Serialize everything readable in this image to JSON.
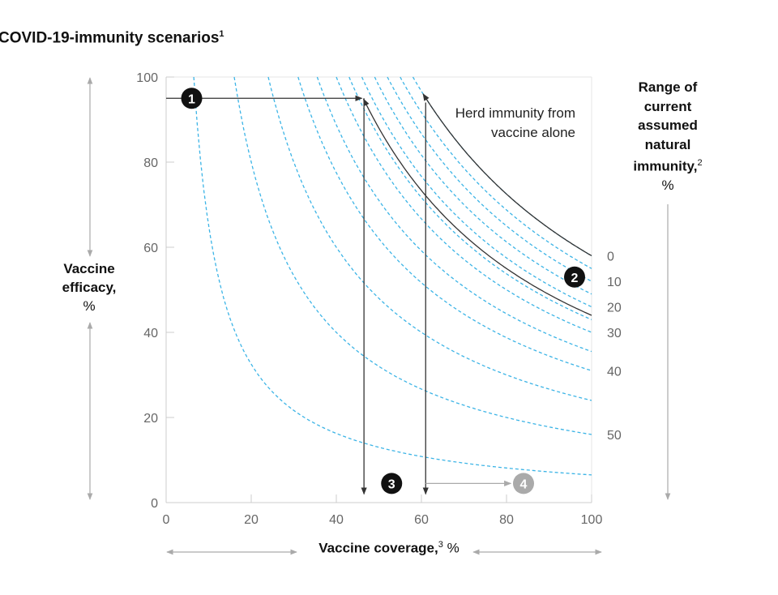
{
  "chart_data": {
    "type": "line",
    "title": "COVID-19-immunity scenarios",
    "title_footnote": "1",
    "xlabel": "Vaccine coverage,",
    "xlabel_footnote": "3",
    "xlabel_unit": "%",
    "ylabel": "Vaccine efficacy,",
    "ylabel_unit": "%",
    "right_label": "Range of current assumed natural immunity,",
    "right_label_footnote": "2",
    "right_label_unit": "%",
    "xlim": [
      0,
      100
    ],
    "ylim": [
      0,
      100
    ],
    "x_ticks": [
      "0",
      "20",
      "40",
      "60",
      "80",
      "100"
    ],
    "y_ticks": [
      "0",
      "20",
      "40",
      "60",
      "80",
      "100"
    ],
    "natural_immunity_ticks": [
      {
        "label": "0",
        "value": 0.58
      },
      {
        "label": "10",
        "value": 0.52
      },
      {
        "label": "20",
        "value": 0.46
      },
      {
        "label": "30",
        "value": 0.4
      },
      {
        "label": "40",
        "value": 0.31
      },
      {
        "label": "50",
        "value": 0.16
      }
    ],
    "series": [
      {
        "style": "dashed",
        "value": 0.58
      },
      {
        "style": "dashed",
        "value": 0.55
      },
      {
        "style": "dashed",
        "value": 0.52
      },
      {
        "style": "dashed",
        "value": 0.49
      },
      {
        "style": "dashed",
        "value": 0.46
      },
      {
        "style": "dashed",
        "value": 0.43
      },
      {
        "style": "dashed",
        "value": 0.4
      },
      {
        "style": "dashed",
        "value": 0.355
      },
      {
        "style": "dashed",
        "value": 0.31
      },
      {
        "style": "dashed",
        "value": 0.24
      },
      {
        "style": "dashed",
        "value": 0.16
      },
      {
        "style": "dashed",
        "value": 0.065
      },
      {
        "style": "solid",
        "value": 0.58
      },
      {
        "style": "solid",
        "value": 0.44
      }
    ],
    "annotation_text": "Herd immunity from vaccine alone",
    "markers": [
      {
        "label": "1",
        "x": 6,
        "y": 95,
        "color": "#111111"
      },
      {
        "label": "2",
        "x": 96,
        "y": 53,
        "color": "#111111"
      },
      {
        "label": "3",
        "x": 53,
        "y": 4.5,
        "color": "#111111"
      },
      {
        "label": "4",
        "x": 84,
        "y": 4.5,
        "color": "#aaaaaa"
      }
    ],
    "arrows": [
      {
        "from": [
          0,
          95
        ],
        "to": [
          46,
          95
        ],
        "color": "#333333"
      },
      {
        "from": [
          46.5,
          95
        ],
        "to": [
          46.5,
          2
        ],
        "color": "#333333"
      },
      {
        "from": [
          61,
          94
        ],
        "to": [
          61,
          2
        ],
        "color": "#333333"
      },
      {
        "from": [
          61,
          4.5
        ],
        "to": [
          81,
          4.5
        ],
        "color": "#aaaaaa"
      }
    ],
    "colors": {
      "dashed": "#3cb4e6",
      "solid": "#333333",
      "axis": "#cccccc",
      "guide_arrow": "#aaaaaa"
    }
  }
}
